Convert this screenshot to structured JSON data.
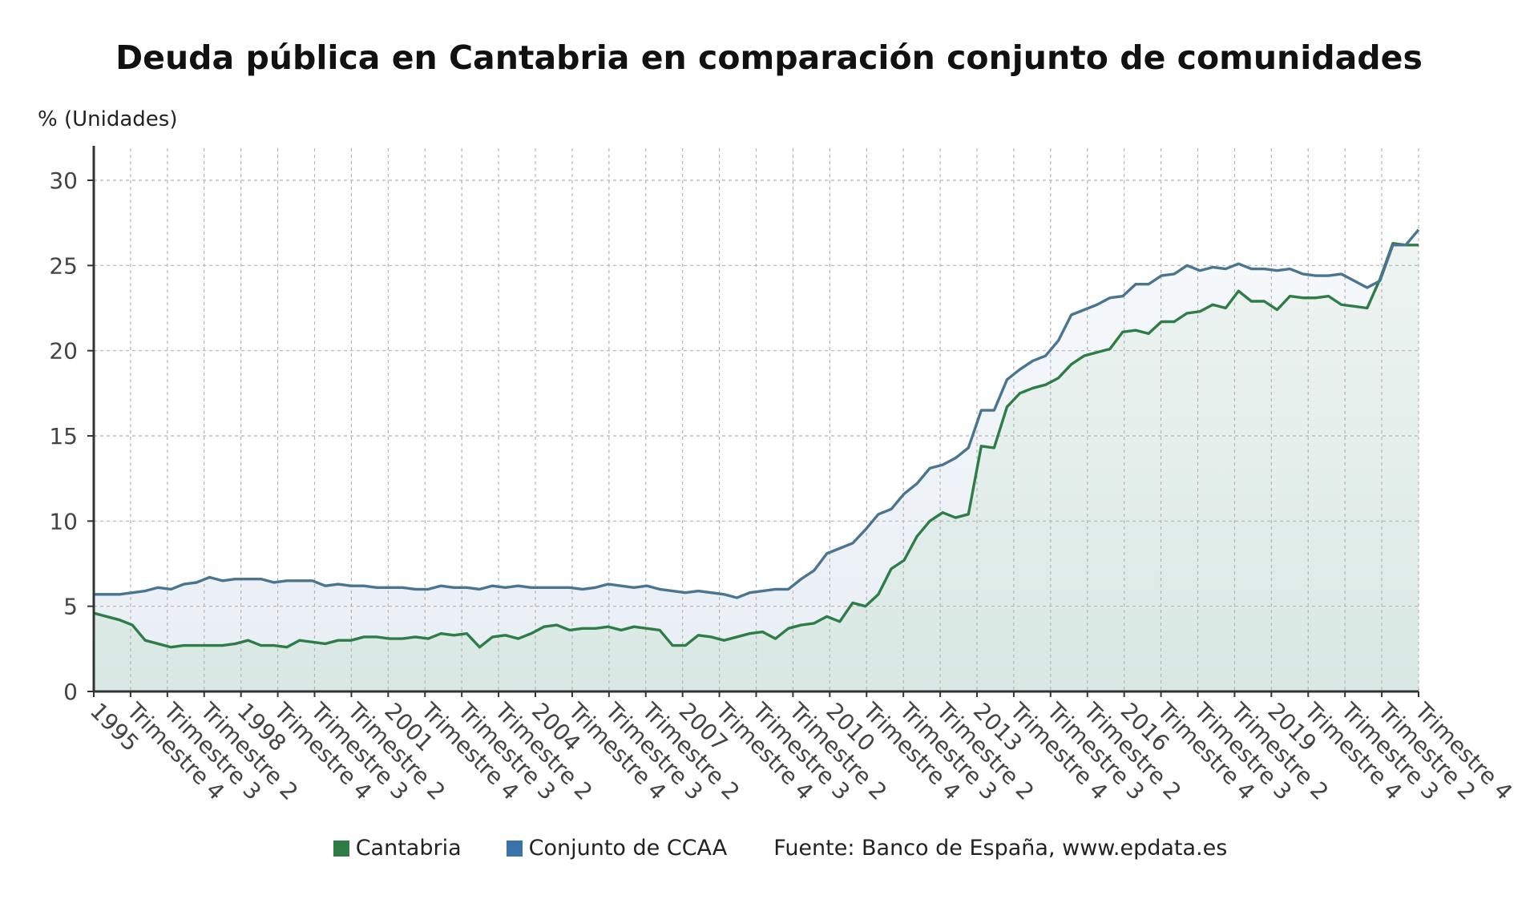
{
  "chart_data": {
    "type": "line",
    "title": "Deuda pública en Cantabria en comparación conjunto de comunidades",
    "y_unit_label": "% (Unidades)",
    "ylim": [
      0,
      30
    ],
    "y_ticks": [
      "0",
      "5",
      "10",
      "15",
      "20",
      "25",
      "30"
    ],
    "grid": true,
    "x_tick_labels": [
      "1995",
      "Trimestre 4",
      "Trimestre 3",
      "Trimestre 2",
      "1998",
      "Trimestre 4",
      "Trimestre 3",
      "Trimestre 2",
      "2001",
      "Trimestre 4",
      "Trimestre 3",
      "Trimestre 2",
      "2004",
      "Trimestre 4",
      "Trimestre 3",
      "Trimestre 2",
      "2007",
      "Trimestre 4",
      "Trimestre 3",
      "Trimestre 2",
      "2010",
      "Trimestre 4",
      "Trimestre 3",
      "Trimestre 2",
      "2013",
      "Trimestre 4",
      "Trimestre 3",
      "Trimestre 2",
      "2016",
      "Trimestre 4",
      "Trimestre 3",
      "Trimestre 2",
      "2019",
      "Trimestre 4",
      "Trimestre 3",
      "Trimestre 2",
      "Trimestre 4"
    ],
    "series": [
      {
        "name": "Cantabria",
        "color": "#2e7d46",
        "values": [
          4.6,
          4.4,
          4.2,
          3.9,
          3.0,
          2.8,
          2.6,
          2.7,
          2.7,
          2.7,
          2.7,
          2.8,
          3.0,
          2.7,
          2.7,
          2.6,
          3.0,
          2.9,
          2.8,
          3.0,
          3.0,
          3.2,
          3.2,
          3.1,
          3.1,
          3.2,
          3.1,
          3.4,
          3.3,
          3.4,
          2.6,
          3.2,
          3.3,
          3.1,
          3.4,
          3.8,
          3.9,
          3.6,
          3.7,
          3.7,
          3.8,
          3.6,
          3.8,
          3.7,
          3.6,
          2.7,
          2.7,
          3.3,
          3.2,
          3.0,
          3.2,
          3.4,
          3.5,
          3.1,
          3.7,
          3.9,
          4.0,
          4.4,
          4.1,
          5.2,
          5.0,
          5.7,
          7.2,
          7.7,
          9.1,
          10.0,
          10.5,
          10.2,
          10.4,
          14.4,
          14.3,
          16.7,
          17.5,
          17.8,
          18.0,
          18.4,
          19.2,
          19.7,
          19.9,
          20.1,
          21.1,
          21.2,
          21.0,
          21.7,
          21.7,
          22.2,
          22.3,
          22.7,
          22.5,
          23.5,
          22.9,
          22.9,
          22.4,
          23.2,
          23.1,
          23.1,
          23.2,
          22.7,
          22.6,
          22.5,
          24.2,
          26.3,
          26.2,
          26.2
        ]
      },
      {
        "name": "Conjunto de CCAA",
        "color": "#4a7590",
        "values": [
          5.7,
          5.7,
          5.7,
          5.8,
          5.9,
          6.1,
          6.0,
          6.3,
          6.4,
          6.7,
          6.5,
          6.6,
          6.6,
          6.6,
          6.4,
          6.5,
          6.5,
          6.5,
          6.2,
          6.3,
          6.2,
          6.2,
          6.1,
          6.1,
          6.1,
          6.0,
          6.0,
          6.2,
          6.1,
          6.1,
          6.0,
          6.2,
          6.1,
          6.2,
          6.1,
          6.1,
          6.1,
          6.1,
          6.0,
          6.1,
          6.3,
          6.2,
          6.1,
          6.2,
          6.0,
          5.9,
          5.8,
          5.9,
          5.8,
          5.7,
          5.5,
          5.8,
          5.9,
          6.0,
          6.0,
          6.6,
          7.1,
          8.1,
          8.4,
          8.7,
          9.5,
          10.4,
          10.7,
          11.6,
          12.2,
          13.1,
          13.3,
          13.7,
          14.3,
          16.5,
          16.5,
          18.3,
          18.9,
          19.4,
          19.7,
          20.6,
          22.1,
          22.4,
          22.7,
          23.1,
          23.2,
          23.9,
          23.9,
          24.4,
          24.5,
          25.0,
          24.7,
          24.9,
          24.8,
          25.1,
          24.8,
          24.8,
          24.7,
          24.8,
          24.5,
          24.4,
          24.4,
          24.5,
          24.1,
          23.7,
          24.1,
          26.2,
          26.2,
          27.1
        ]
      }
    ]
  },
  "legend": {
    "source_text": "Fuente: Banco de España, www.epdata.es"
  }
}
